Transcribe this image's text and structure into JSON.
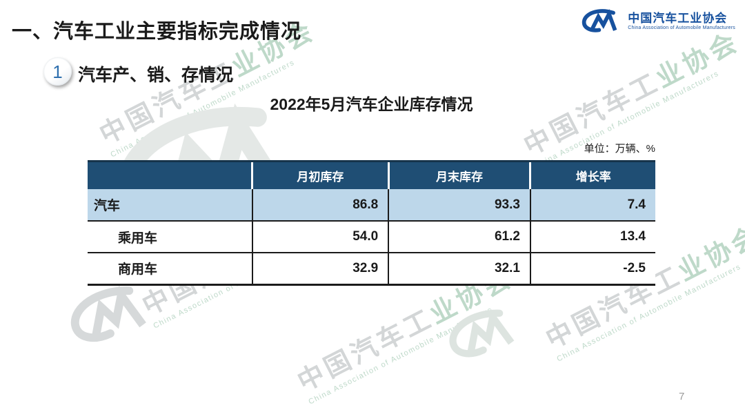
{
  "slide": {
    "section_title": "一、汽车工业主要指标完成情况",
    "badge_number": "1",
    "subtitle": "汽车产、销、存情况",
    "table_title": "2022年5月汽车企业库存情况",
    "unit_note": "单位：万辆、%",
    "page_number": "7"
  },
  "logo": {
    "name_zh": "中国汽车工业协会",
    "name_en": "China Association of Automobile Manufacturers"
  },
  "watermark": {
    "zh_gray": "中国汽车工",
    "zh_teal": "业协会",
    "en": "China Association of Automobile Manufacturers"
  },
  "chart_data": {
    "type": "table",
    "title": "2022年5月汽车企业库存情况",
    "unit": "万辆、%",
    "columns": [
      "",
      "月初库存",
      "月末库存",
      "增长率"
    ],
    "rows": [
      {
        "label": "汽车",
        "values": [
          "86.8",
          "93.3",
          "7.4"
        ],
        "highlight": true,
        "indent": false
      },
      {
        "label": "乘用车",
        "values": [
          "54.0",
          "61.2",
          "13.4"
        ],
        "highlight": false,
        "indent": true
      },
      {
        "label": "商用车",
        "values": [
          "32.9",
          "32.1",
          "-2.5"
        ],
        "highlight": false,
        "indent": true
      }
    ]
  },
  "colors": {
    "header_bg": "#1f4e74",
    "highlight_row_bg": "#bdd7ea",
    "logo_blue": "#17519e",
    "badge_digit_blue": "#2e6fae",
    "watermark_gray": "#d3d6d7",
    "watermark_teal": "#bed9c9"
  }
}
